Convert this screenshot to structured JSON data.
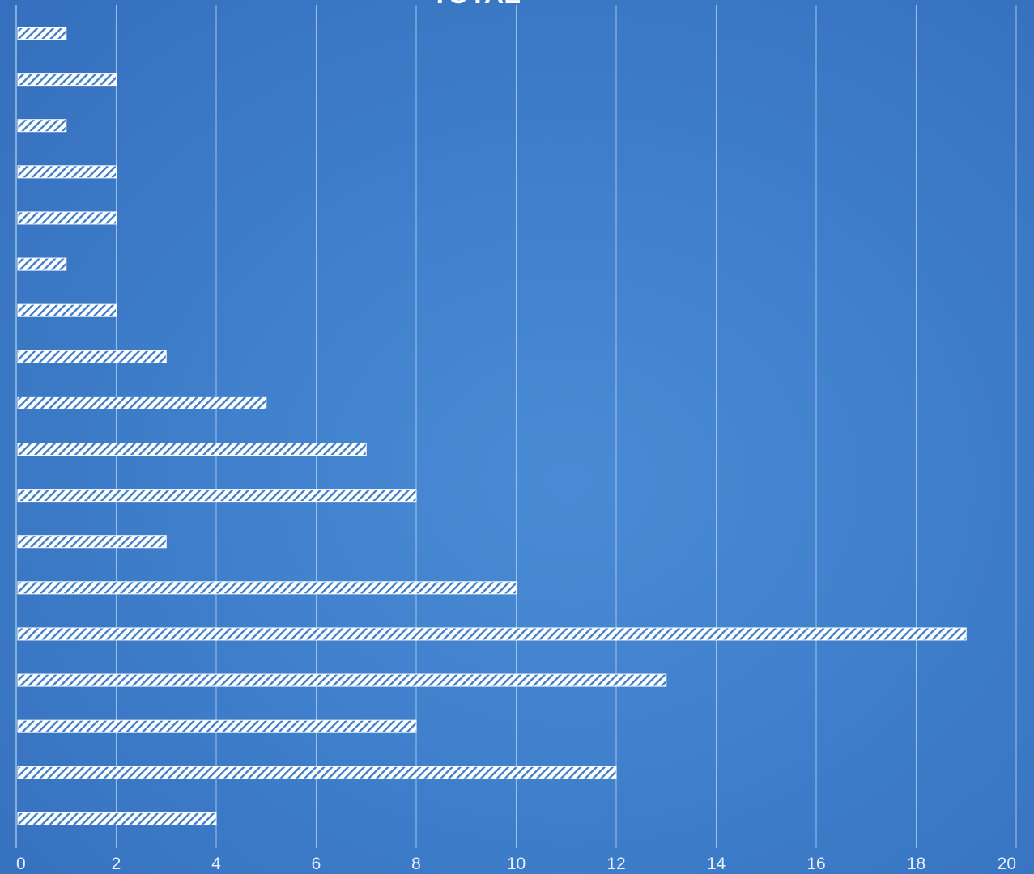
{
  "chart_data": {
    "type": "bar",
    "orientation": "horizontal",
    "title": "TOTAL",
    "xlabel": "",
    "ylabel": "",
    "xlim": [
      0,
      20
    ],
    "x_ticks": [
      "0",
      "2",
      "4",
      "6",
      "8",
      "10",
      "12",
      "14",
      "16",
      "18",
      "20"
    ],
    "grid": "vertical",
    "values": [
      1,
      2,
      1,
      2,
      2,
      1,
      2,
      3,
      5,
      7,
      8,
      3,
      10,
      19,
      13,
      8,
      12,
      4
    ],
    "colors": {
      "background": "#3f7fcb",
      "bar": "#ffffff",
      "bar_hatch": "#3f7fcb",
      "gridline": "#a9c8ee",
      "tick_text": "#e8f0fb"
    }
  }
}
